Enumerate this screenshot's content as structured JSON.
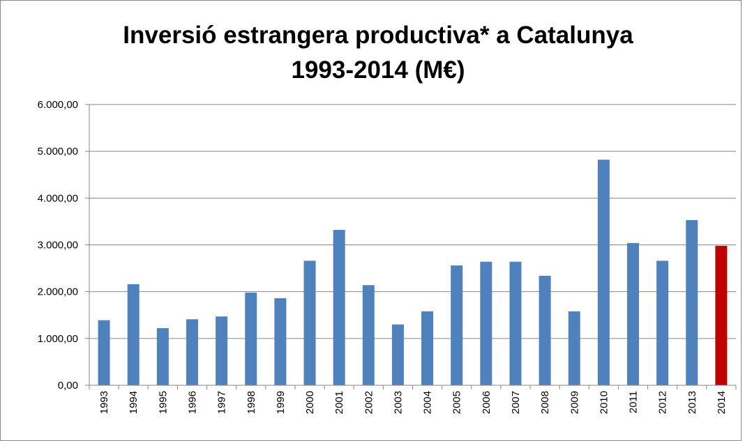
{
  "chart_data": {
    "type": "bar",
    "title": [
      "Inversió estrangera productiva* a Catalunya",
      "1993-2014 (M€)"
    ],
    "categories": [
      "1993",
      "1994",
      "1995",
      "1996",
      "1997",
      "1998",
      "1999",
      "2000",
      "2001",
      "2002",
      "2003",
      "2004",
      "2005",
      "2006",
      "2007",
      "2008",
      "2009",
      "2010",
      "2011",
      "2012",
      "2013",
      "2014"
    ],
    "values": [
      1390,
      2160,
      1220,
      1410,
      1470,
      1980,
      1860,
      2660,
      3320,
      2140,
      1300,
      1580,
      2560,
      2640,
      2640,
      2340,
      1580,
      4820,
      3040,
      2660,
      3530,
      2980
    ],
    "colors": [
      "#4f81bd",
      "#4f81bd",
      "#4f81bd",
      "#4f81bd",
      "#4f81bd",
      "#4f81bd",
      "#4f81bd",
      "#4f81bd",
      "#4f81bd",
      "#4f81bd",
      "#4f81bd",
      "#4f81bd",
      "#4f81bd",
      "#4f81bd",
      "#4f81bd",
      "#4f81bd",
      "#4f81bd",
      "#4f81bd",
      "#4f81bd",
      "#4f81bd",
      "#4f81bd",
      "#c00000"
    ],
    "ylim": [
      0,
      6000
    ],
    "yticks": [
      {
        "value": 0,
        "label": "0,00"
      },
      {
        "value": 1000,
        "label": "1.000,00"
      },
      {
        "value": 2000,
        "label": "2.000,00"
      },
      {
        "value": 3000,
        "label": "3.000,00"
      },
      {
        "value": 4000,
        "label": "4.000,00"
      },
      {
        "value": 5000,
        "label": "5.000,00"
      },
      {
        "value": 6000,
        "label": "6.000,00"
      }
    ],
    "grid": true
  }
}
